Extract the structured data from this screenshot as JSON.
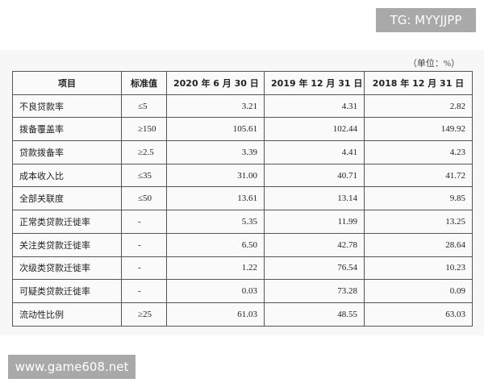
{
  "watermark": {
    "top": "TG: MYYJJPP",
    "bottom": "www.game608.net"
  },
  "unit": "（单位：%）",
  "table": {
    "header": [
      "项目",
      "标准值",
      "2020 年 6 月 30 日",
      "2019 年 12 月 31 日",
      "2018 年 12 月 31 日"
    ],
    "rows": [
      [
        "不良贷款率",
        "≤5",
        "3.21",
        "4.31",
        "2.82"
      ],
      [
        "拨备覆盖率",
        "≥150",
        "105.61",
        "102.44",
        "149.92"
      ],
      [
        "贷款拨备率",
        "≥2.5",
        "3.39",
        "4.41",
        "4.23"
      ],
      [
        "成本收入比",
        "≤35",
        "31.00",
        "40.71",
        "41.72"
      ],
      [
        "全部关联度",
        "≤50",
        "13.61",
        "13.14",
        "9.85"
      ],
      [
        "正常类贷款迁徙率",
        "-",
        "5.35",
        "11.99",
        "13.25"
      ],
      [
        "关注类贷款迁徙率",
        "-",
        "6.50",
        "42.78",
        "28.64"
      ],
      [
        "次级类贷款迁徙率",
        "-",
        "1.22",
        "76.54",
        "10.23"
      ],
      [
        "可疑类贷款迁徙率",
        "-",
        "0.03",
        "73.28",
        "0.09"
      ],
      [
        "流动性比例",
        "≥25",
        "61.03",
        "48.55",
        "63.03"
      ]
    ]
  }
}
